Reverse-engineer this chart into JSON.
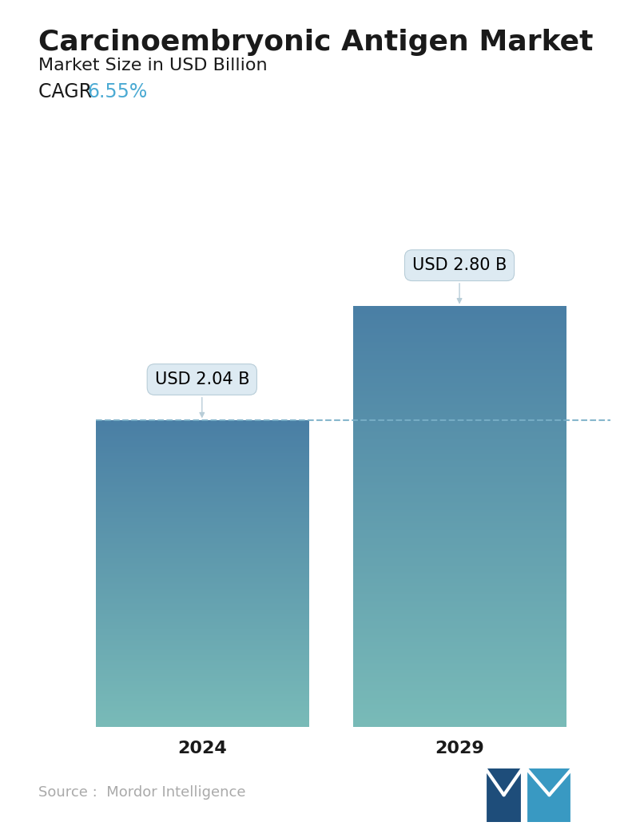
{
  "title": "Carcinoembryonic Antigen Market",
  "subtitle": "Market Size in USD Billion",
  "cagr_label": "CAGR  ",
  "cagr_value": "6.55%",
  "cagr_color": "#4BAAD3",
  "categories": [
    "2024",
    "2029"
  ],
  "values": [
    2.04,
    2.8
  ],
  "bar_labels": [
    "USD 2.04 B",
    "USD 2.80 B"
  ],
  "bar_top_color": "#4a7fa5",
  "bar_bottom_color": "#79bbb8",
  "dashed_line_color": "#7ab0c8",
  "dashed_line_value": 2.04,
  "background_color": "#ffffff",
  "source_text": "Source :  Mordor Intelligence",
  "source_color": "#aaaaaa",
  "title_fontsize": 26,
  "subtitle_fontsize": 16,
  "cagr_fontsize": 17,
  "bar_label_fontsize": 15,
  "tick_fontsize": 16,
  "source_fontsize": 13,
  "ylim": [
    0,
    3.3
  ],
  "bar_positions": [
    0.27,
    0.73
  ],
  "bar_width": 0.38
}
